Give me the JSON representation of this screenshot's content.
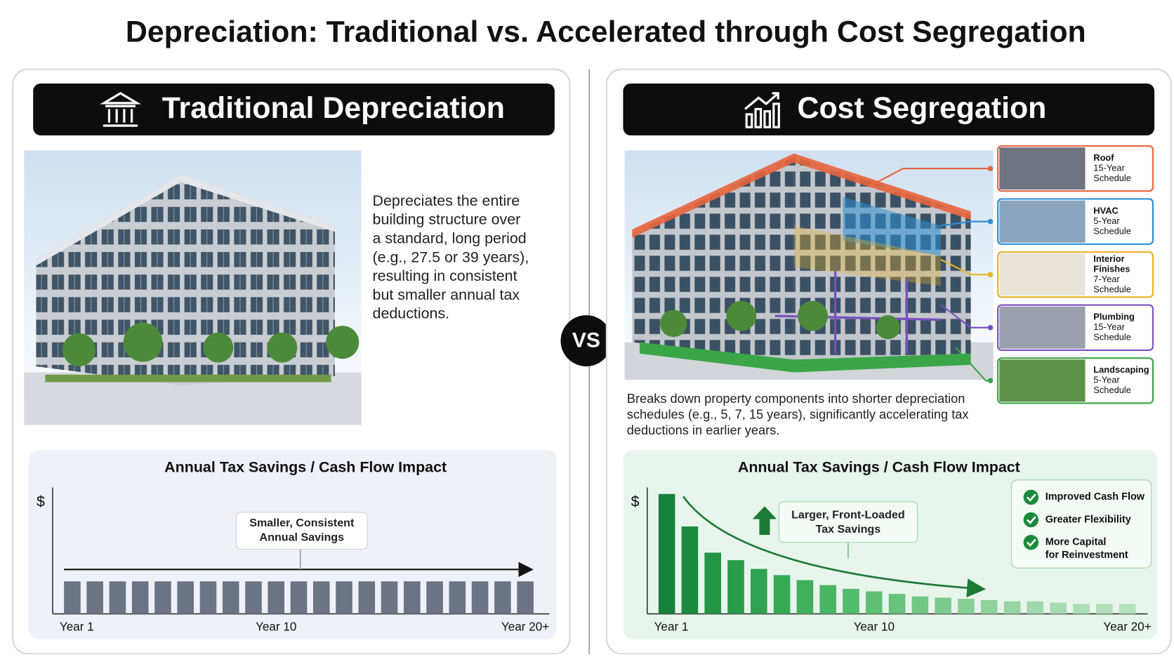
{
  "title": "Depreciation: Traditional vs. Accelerated through Cost Segregation",
  "vs": "VS",
  "left": {
    "heading": "Traditional Depreciation",
    "description": [
      "Depreciates the entire",
      "building structure over",
      "a standard, long period",
      "(e.g., 27.5 or 39 years),",
      "resulting in consistent",
      "but smaller annual tax",
      "deductions."
    ]
  },
  "right": {
    "heading": "Cost Segregation",
    "description": [
      "Breaks down property components into shorter depreciation",
      "schedules (e.g., 5, 7, 15 years), significantly accelerating tax",
      "deductions in earlier years."
    ],
    "components": [
      {
        "label": [
          "Roof",
          "15-Year",
          "Schedule"
        ],
        "color": "#e8643c"
      },
      {
        "label": [
          "HVAC",
          "5-Year",
          "Schedule"
        ],
        "color": "#2b8fd6"
      },
      {
        "label": [
          "Interior",
          "Finishes",
          "7-Year",
          "Schedule"
        ],
        "color": "#e9b227"
      },
      {
        "label": [
          "Plumbing",
          "15-Year",
          "Schedule"
        ],
        "color": "#7b4fc0"
      },
      {
        "label": [
          "Landscaping",
          "5-Year",
          "Schedule"
        ],
        "color": "#3aa648"
      }
    ]
  },
  "chart_data": [
    {
      "type": "bar",
      "title": "Annual Tax Savings / Cash Flow Impact",
      "ylabel": "$",
      "categories": [
        "Year 1",
        null,
        null,
        null,
        null,
        null,
        null,
        null,
        null,
        "Year 10",
        null,
        null,
        null,
        null,
        null,
        null,
        null,
        null,
        null,
        null,
        "Year 20+"
      ],
      "values": [
        26,
        26,
        26,
        26,
        26,
        26,
        26,
        26,
        26,
        26,
        26,
        26,
        26,
        26,
        26,
        26,
        26,
        26,
        26,
        26,
        26
      ],
      "color": "#6b7483",
      "ylim": [
        0,
        100
      ],
      "annotation": [
        "Smaller, Consistent",
        "Annual Savings"
      ]
    },
    {
      "type": "bar",
      "title": "Annual Tax Savings / Cash Flow Impact",
      "ylabel": "$",
      "categories": [
        "Year 1",
        null,
        null,
        null,
        null,
        null,
        null,
        null,
        null,
        "Year 10",
        null,
        null,
        null,
        null,
        null,
        null,
        null,
        null,
        null,
        null,
        "Year 20+"
      ],
      "values": [
        96,
        70,
        49,
        43,
        36,
        31,
        27,
        23,
        20,
        18,
        16,
        14,
        13,
        12,
        11,
        10,
        10,
        9,
        8,
        8,
        8
      ],
      "colors": [
        "#17803a",
        "#1c8a3f",
        "#229444",
        "#289c49",
        "#2fa34f",
        "#37aa56",
        "#40b05d",
        "#4ab565",
        "#54ba6d",
        "#5ebf75",
        "#68c37d",
        "#72c785",
        "#7ccb8d",
        "#86cf95",
        "#8fd29c",
        "#97d5a3",
        "#9fd8aa",
        "#a6dbb0",
        "#acdeb5",
        "#b1e0ba",
        "#b5e2bd"
      ],
      "ylim": [
        0,
        100
      ],
      "annotation": [
        "Larger, Front-Loaded",
        "Tax Savings"
      ],
      "highlights": [
        [
          "Improved Cash Flow"
        ],
        [
          "Greater Flexibility"
        ],
        [
          "More Capital",
          "for Reinvestment"
        ]
      ]
    }
  ]
}
